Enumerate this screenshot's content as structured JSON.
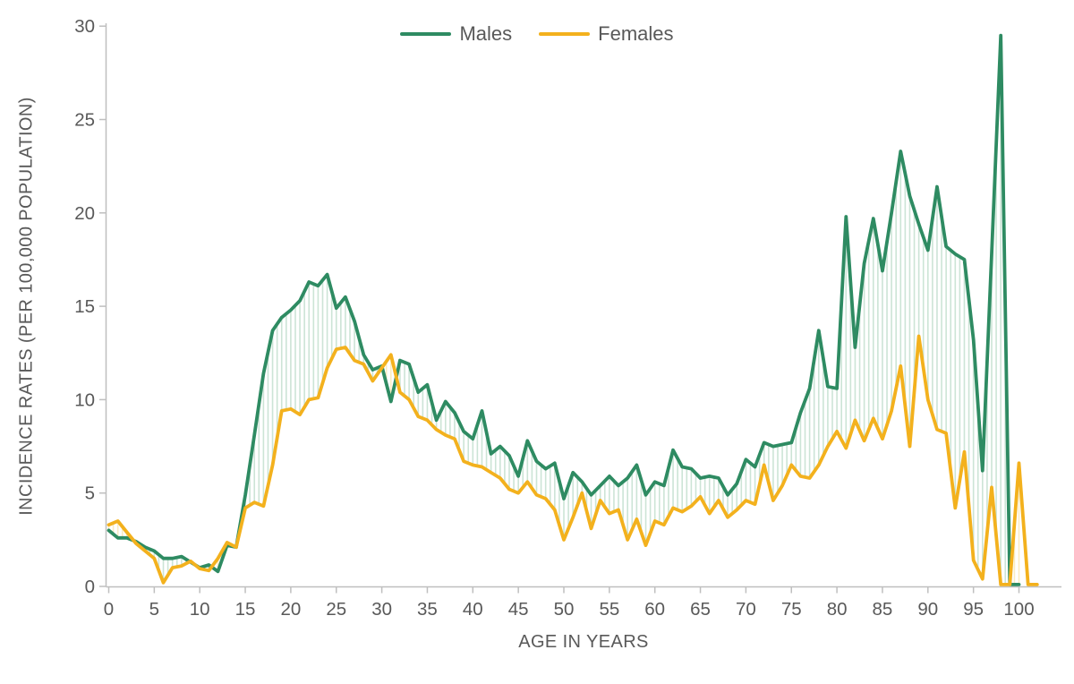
{
  "legend": {
    "males_label": "Males",
    "females_label": "Females"
  },
  "chart_data": {
    "type": "line",
    "title": "",
    "xlabel": "AGE IN YEARS",
    "ylabel": "INCIDENCE RATES (PER 100,000 POPULATION)",
    "xlim": [
      0,
      102
    ],
    "ylim": [
      0,
      30
    ],
    "x_ticks": [
      0,
      5,
      10,
      15,
      20,
      25,
      30,
      35,
      40,
      45,
      50,
      55,
      60,
      65,
      70,
      75,
      80,
      85,
      90,
      95,
      100
    ],
    "y_ticks": [
      0,
      5,
      10,
      15,
      20,
      25,
      30
    ],
    "grid": "off",
    "legend_position": "top-center",
    "text_color": "#595959",
    "axis_color": "#bfbfbf",
    "fill_between": {
      "pattern": "vertical-hatch",
      "step_years": 0.5,
      "males_above_color": "#cce4d6",
      "females_above_color": "#faecc3"
    },
    "age_start": 0,
    "series": [
      {
        "name": "Males",
        "color": "#2e8b62",
        "values": [
          3.0,
          2.6,
          2.6,
          2.4,
          2.1,
          1.9,
          1.5,
          1.5,
          1.6,
          1.3,
          1.0,
          1.15,
          0.8,
          2.2,
          2.1,
          4.9,
          8.1,
          11.4,
          13.7,
          14.4,
          14.8,
          15.3,
          16.3,
          16.1,
          16.7,
          14.9,
          15.5,
          14.2,
          12.4,
          11.6,
          11.8,
          9.9,
          12.1,
          11.9,
          10.4,
          10.8,
          8.9,
          9.9,
          9.3,
          8.3,
          7.9,
          9.4,
          7.1,
          7.5,
          7.0,
          5.9,
          7.8,
          6.7,
          6.3,
          6.6,
          4.7,
          6.1,
          5.6,
          4.9,
          5.4,
          5.9,
          5.4,
          5.8,
          6.5,
          4.9,
          5.6,
          5.4,
          7.3,
          6.4,
          6.3,
          5.8,
          5.9,
          5.8,
          4.9,
          5.5,
          6.8,
          6.4,
          7.7,
          7.5,
          7.6,
          7.7,
          9.3,
          10.6,
          13.7,
          10.7,
          10.6,
          19.8,
          12.8,
          17.3,
          19.7,
          16.9,
          20.0,
          23.3,
          20.9,
          19.4,
          18.0,
          21.4,
          18.2,
          17.8,
          17.5,
          13.2,
          6.2,
          17.8,
          29.5,
          0.1,
          0.1
        ]
      },
      {
        "name": "Females",
        "color": "#f3b11d",
        "values": [
          3.3,
          3.5,
          2.9,
          2.3,
          1.9,
          1.5,
          0.2,
          1.0,
          1.1,
          1.35,
          0.95,
          0.85,
          1.5,
          2.35,
          2.1,
          4.2,
          4.5,
          4.3,
          6.5,
          9.4,
          9.5,
          9.2,
          10.0,
          10.1,
          11.7,
          12.7,
          12.8,
          12.1,
          11.9,
          11.0,
          11.7,
          12.4,
          10.4,
          10.0,
          9.1,
          8.9,
          8.4,
          8.1,
          7.9,
          6.7,
          6.5,
          6.4,
          6.1,
          5.8,
          5.2,
          5.0,
          5.6,
          4.9,
          4.7,
          4.1,
          2.5,
          3.7,
          5.0,
          3.1,
          4.6,
          3.9,
          4.1,
          2.5,
          3.6,
          2.2,
          3.5,
          3.3,
          4.2,
          4.0,
          4.3,
          4.8,
          3.9,
          4.6,
          3.7,
          4.1,
          4.6,
          4.4,
          6.5,
          4.6,
          5.4,
          6.5,
          5.9,
          5.8,
          6.5,
          7.5,
          8.3,
          7.4,
          8.9,
          7.8,
          9.0,
          7.9,
          9.4,
          11.8,
          7.5,
          13.4,
          10.0,
          8.4,
          8.2,
          4.2,
          7.2,
          1.4,
          0.4,
          5.3,
          0.1,
          0.1,
          6.6,
          0.1,
          0.1
        ]
      }
    ]
  }
}
